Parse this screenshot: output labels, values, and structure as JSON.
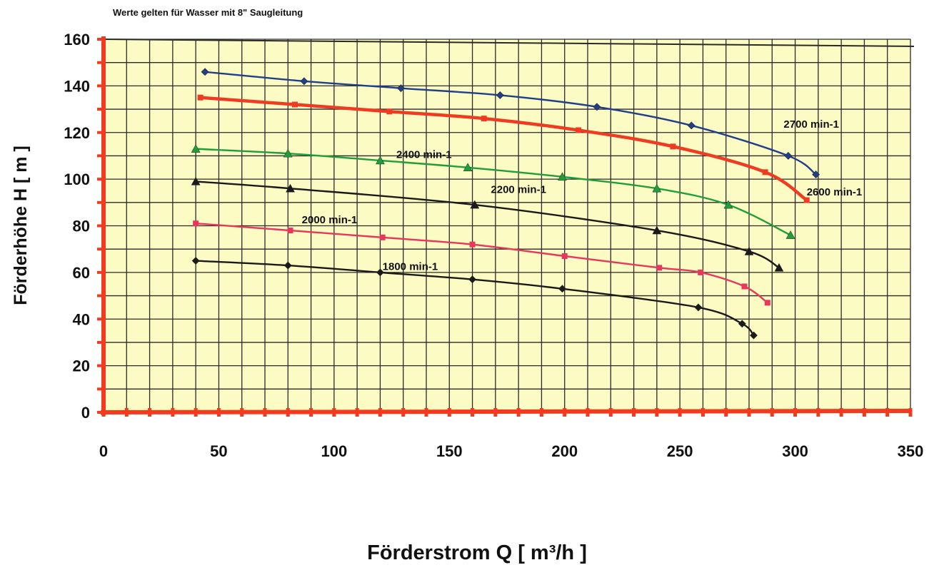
{
  "chart_data": {
    "type": "line",
    "title": "Werte gelten für Wasser mit 8\" Saugleitung",
    "xlabel": "Förderstrom Q [ m³/h ]",
    "ylabel": "Förderhöhe H [ m ]",
    "xlim": [
      0,
      350
    ],
    "ylim": [
      0,
      160
    ],
    "x_ticks": [
      "0",
      "50",
      "100",
      "150",
      "200",
      "250",
      "300",
      "350"
    ],
    "y_ticks": [
      "0",
      "20",
      "40",
      "60",
      "80",
      "100",
      "120",
      "140",
      "160"
    ],
    "grid": true,
    "grid_minor_x": 10,
    "grid_minor_y": 10,
    "legend": "none",
    "colors": {
      "background": "#fdfbc4",
      "axis": "#f23a1e",
      "grid": "#2a2a2a"
    },
    "series": [
      {
        "name": "2700 min-1",
        "color": "#1f3f8a",
        "marker": "diamond",
        "label_at": [
          295,
          122
        ],
        "points": [
          [
            44,
            146
          ],
          [
            87,
            142
          ],
          [
            129,
            139
          ],
          [
            172,
            136
          ],
          [
            214,
            131
          ],
          [
            255,
            123
          ],
          [
            297,
            110
          ],
          [
            309,
            102
          ]
        ]
      },
      {
        "name": "2600 min-1",
        "color": "#ef3b22",
        "marker": "square",
        "thick": true,
        "label_at": [
          305,
          93
        ],
        "points": [
          [
            42,
            135
          ],
          [
            83,
            132
          ],
          [
            124,
            129
          ],
          [
            165,
            126
          ],
          [
            206,
            121
          ],
          [
            247,
            114
          ],
          [
            287,
            103
          ],
          [
            305,
            91
          ]
        ]
      },
      {
        "name": "2400 min-1",
        "color": "#1f9e3a",
        "marker": "triangle",
        "label_at": [
          127,
          109
        ],
        "points": [
          [
            40,
            113
          ],
          [
            80,
            111
          ],
          [
            120,
            108
          ],
          [
            158,
            105
          ],
          [
            199,
            101
          ],
          [
            240,
            96
          ],
          [
            271,
            89
          ],
          [
            298,
            76
          ]
        ]
      },
      {
        "name": "2200 min-1",
        "color": "#1a1a1a",
        "marker": "triangle",
        "label_at": [
          168,
          94
        ],
        "points": [
          [
            40,
            99
          ],
          [
            81,
            96
          ],
          [
            161,
            89
          ],
          [
            240,
            78
          ],
          [
            280,
            69
          ],
          [
            293,
            62
          ]
        ]
      },
      {
        "name": "2000 min-1",
        "color": "#e8365c",
        "marker": "square",
        "label_at": [
          86,
          81
        ],
        "points": [
          [
            40,
            81
          ],
          [
            81,
            78
          ],
          [
            121,
            75
          ],
          [
            160,
            72
          ],
          [
            200,
            67
          ],
          [
            241,
            62
          ],
          [
            259,
            60
          ],
          [
            278,
            54
          ],
          [
            288,
            47
          ]
        ]
      },
      {
        "name": "1800 min-1",
        "color": "#1a1a1a",
        "marker": "diamond",
        "label_at": [
          121,
          61
        ],
        "points": [
          [
            40,
            65
          ],
          [
            80,
            63
          ],
          [
            120,
            60
          ],
          [
            160,
            57
          ],
          [
            199,
            53
          ],
          [
            258,
            45
          ],
          [
            277,
            38
          ],
          [
            282,
            33
          ]
        ]
      }
    ]
  }
}
